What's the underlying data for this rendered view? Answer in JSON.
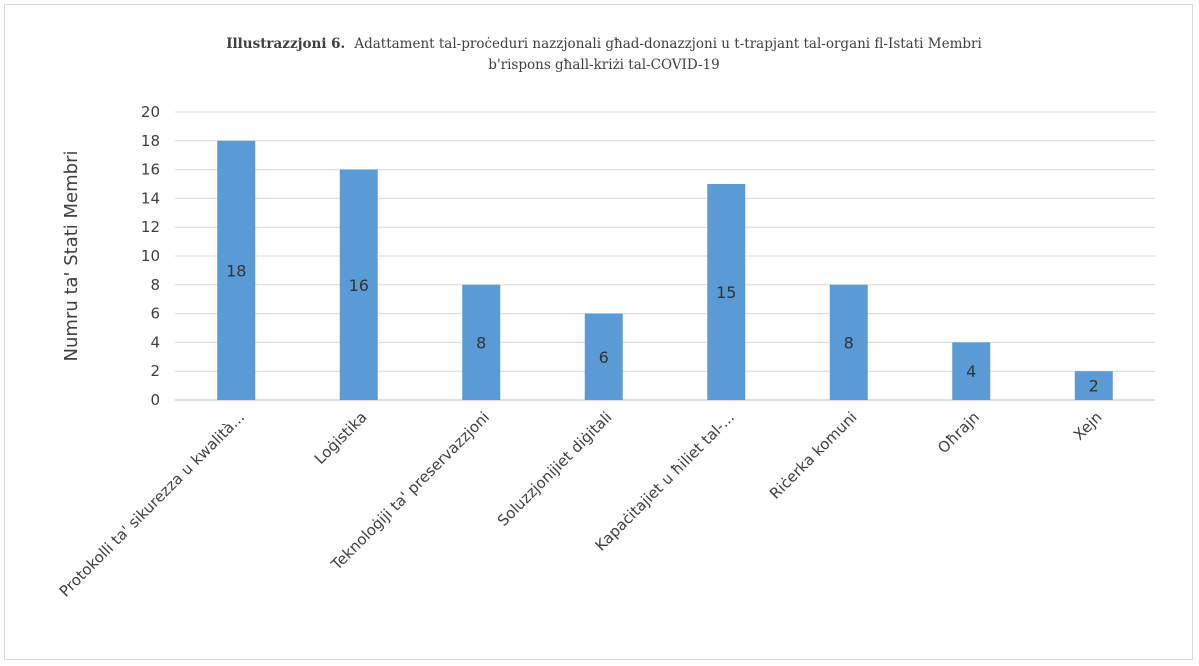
{
  "chart_data": {
    "type": "bar",
    "title_bold": "Illustrazzjoni 6.",
    "title_line1": "Adattament tal-proċeduri nazzjonali għad-donazzjoni u t-trapjant tal-organi fl-Istati Membri",
    "title_line2": "b'rispons għall-kriżi tal-COVID-19",
    "ylabel": "Numru ta' Stati Membri",
    "xlabel": "",
    "categories": [
      "Protokolli ta' sikurezza u kwalità...",
      "Loġistika",
      "Teknoloġiji ta' preservazzjoni",
      "Soluzzjonijiet diġitali",
      "Kapaċitajiet u ħiliet tal-...",
      "Riċerka komuni",
      "Oħrajn",
      "Xejn"
    ],
    "values": [
      18,
      16,
      8,
      6,
      15,
      8,
      4,
      2
    ],
    "ylim": [
      0,
      20
    ],
    "yticks": [
      0,
      2,
      4,
      6,
      8,
      10,
      12,
      14,
      16,
      18,
      20
    ],
    "grid": true,
    "bar_color": "#5b9bd5",
    "data_labels": true
  }
}
